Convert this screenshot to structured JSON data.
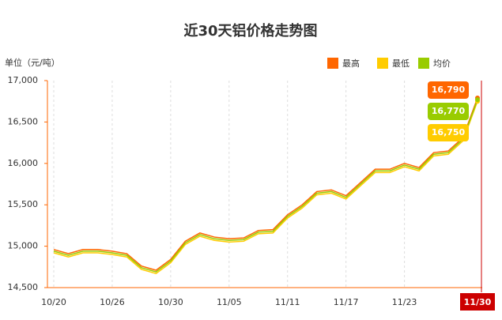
{
  "chart_data": {
    "type": "line",
    "title": "近30天铝价格走势图",
    "y_label": "单位（元/吨）",
    "categories": [
      "10/20",
      null,
      null,
      null,
      "10/26",
      null,
      null,
      null,
      "10/30",
      null,
      null,
      null,
      "11/05",
      null,
      null,
      null,
      "11/11",
      null,
      null,
      null,
      "11/17",
      null,
      null,
      null,
      "11/23",
      null,
      null,
      null,
      null,
      "11/30"
    ],
    "series": [
      {
        "name": "最高",
        "color": "#ff6600",
        "values": [
          14960,
          14910,
          14960,
          14960,
          14940,
          14910,
          14760,
          14710,
          14840,
          15060,
          15160,
          15110,
          15090,
          15100,
          15190,
          15200,
          15380,
          15500,
          15660,
          15680,
          15610,
          15770,
          15930,
          15930,
          16000,
          15950,
          16130,
          16150,
          16310,
          16790
        ],
        "value_labels": [
          null,
          null,
          null,
          null,
          null,
          null,
          null,
          null,
          null,
          null,
          null,
          null,
          null,
          null,
          null,
          null,
          null,
          null,
          null,
          null,
          null,
          null,
          null,
          null,
          null,
          null,
          null,
          null,
          null,
          "16,790"
        ]
      },
      {
        "name": "最低",
        "color": "#ffcc00",
        "values": [
          14920,
          14870,
          14920,
          14920,
          14900,
          14870,
          14720,
          14670,
          14800,
          15020,
          15120,
          15070,
          15050,
          15060,
          15150,
          15160,
          15340,
          15460,
          15620,
          15640,
          15570,
          15730,
          15890,
          15890,
          15960,
          15910,
          16090,
          16110,
          16270,
          16750
        ],
        "value_labels": [
          null,
          null,
          null,
          null,
          null,
          null,
          null,
          null,
          null,
          null,
          null,
          null,
          null,
          null,
          null,
          null,
          null,
          null,
          null,
          null,
          null,
          null,
          null,
          null,
          null,
          null,
          null,
          null,
          null,
          "16,750"
        ]
      },
      {
        "name": "均价",
        "color": "#99cc00",
        "values": [
          14940,
          14890,
          14940,
          14940,
          14920,
          14890,
          14740,
          14690,
          14820,
          15040,
          15140,
          15090,
          15070,
          15080,
          15170,
          15180,
          15360,
          15480,
          15640,
          15660,
          15590,
          15750,
          15910,
          15910,
          15980,
          15930,
          16110,
          16130,
          16290,
          16770
        ],
        "value_labels": [
          null,
          null,
          null,
          null,
          null,
          null,
          null,
          null,
          null,
          null,
          null,
          null,
          null,
          null,
          null,
          null,
          null,
          null,
          null,
          null,
          null,
          null,
          null,
          null,
          null,
          null,
          null,
          null,
          null,
          "16,770"
        ]
      }
    ],
    "ylim": [
      14500,
      17000
    ],
    "yticks": [
      {
        "value": 14500,
        "label": "14,500"
      },
      {
        "value": 15000,
        "label": "15,000"
      },
      {
        "value": 15500,
        "label": "15,500"
      },
      {
        "value": 16000,
        "label": "16,000"
      },
      {
        "value": 16500,
        "label": "16,500"
      },
      {
        "value": 17000,
        "label": "17,000"
      }
    ],
    "grid": true,
    "legend": "top-right"
  }
}
